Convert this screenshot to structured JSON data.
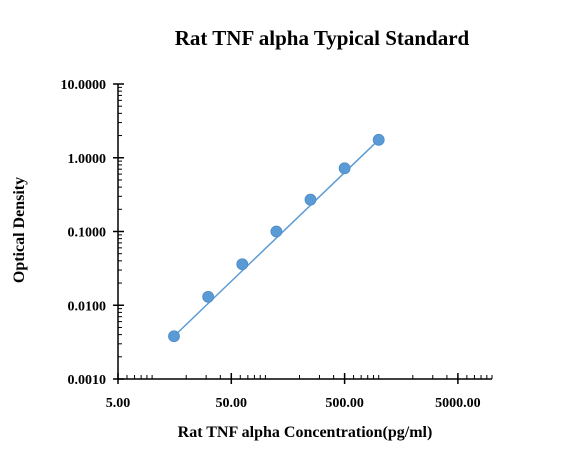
{
  "chart_data": {
    "type": "scatter",
    "title": "Rat TNF alpha Typical Standard",
    "xlabel": "Rat TNF alpha Concentration(pg/ml)",
    "ylabel": "Optical Density",
    "x_scale": "log",
    "y_scale": "log",
    "xlim": [
      5,
      10000
    ],
    "ylim": [
      0.001,
      10
    ],
    "x_ticks": [
      {
        "value": 5,
        "label": "5.00"
      },
      {
        "value": 50,
        "label": "50.00"
      },
      {
        "value": 500,
        "label": "500.00"
      },
      {
        "value": 5000,
        "label": "5000.00"
      }
    ],
    "y_ticks": [
      {
        "value": 0.001,
        "label": "0.0010"
      },
      {
        "value": 0.01,
        "label": "0.0100"
      },
      {
        "value": 0.1,
        "label": "0.1000"
      },
      {
        "value": 1,
        "label": "1.0000"
      },
      {
        "value": 10,
        "label": "10.0000"
      }
    ],
    "grid": false,
    "legend": "none",
    "series": [
      {
        "marker": "circle",
        "fit_line": true,
        "points": [
          {
            "x": 15.6,
            "y": 0.0038
          },
          {
            "x": 31.25,
            "y": 0.013
          },
          {
            "x": 62.5,
            "y": 0.036
          },
          {
            "x": 125,
            "y": 0.1
          },
          {
            "x": 250,
            "y": 0.27
          },
          {
            "x": 500,
            "y": 0.72
          },
          {
            "x": 1000,
            "y": 1.75
          }
        ]
      }
    ],
    "colors": {
      "marker": "#5b9bd5",
      "line": "#5b9bd5",
      "axis": "#000000"
    }
  }
}
